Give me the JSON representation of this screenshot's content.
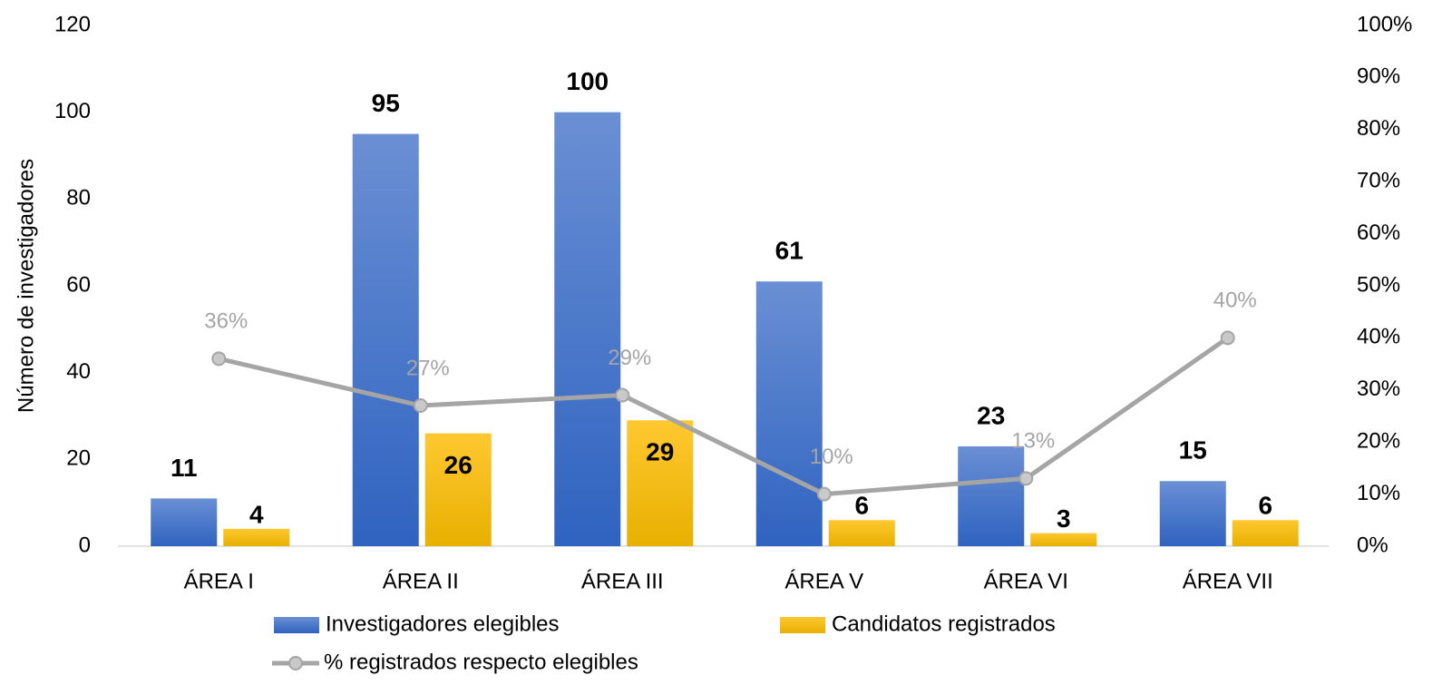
{
  "chart_data": {
    "type": "bar",
    "y_label": "Número de investigadores",
    "categories": [
      "ÁREA I",
      "ÁREA II",
      "ÁREA III",
      "ÁREA V",
      "ÁREA VI",
      "ÁREA VII"
    ],
    "series": [
      {
        "name": "Investigadores elegibles",
        "color": "#4472c4",
        "values": [
          11,
          95,
          100,
          61,
          23,
          15
        ]
      },
      {
        "name": "Candidatos registrados",
        "color": "#ffc000",
        "values": [
          4,
          26,
          29,
          6,
          3,
          6
        ]
      },
      {
        "name": "% registrados respecto elegibles",
        "color": "#a5a5a5",
        "type": "line",
        "axis": "y2",
        "values": [
          36,
          27,
          29,
          10,
          13,
          40
        ],
        "value_labels": [
          "36%",
          "27%",
          "29%",
          "10%",
          "13%",
          "40%"
        ]
      }
    ],
    "ylim": [
      0,
      120
    ],
    "yticks": [
      0,
      20,
      40,
      60,
      80,
      100,
      120
    ],
    "y2lim": [
      0,
      100
    ],
    "y2ticks": [
      {
        "value": 0,
        "label": "0%"
      },
      {
        "value": 10,
        "label": "10%"
      },
      {
        "value": 20,
        "label": "20%"
      },
      {
        "value": 30,
        "label": "30%"
      },
      {
        "value": 40,
        "label": "40%"
      },
      {
        "value": 50,
        "label": "50%"
      },
      {
        "value": 60,
        "label": "60%"
      },
      {
        "value": 70,
        "label": "70%"
      },
      {
        "value": 80,
        "label": "80%"
      },
      {
        "value": 90,
        "label": "90%"
      },
      {
        "value": 100,
        "label": "100%"
      }
    ],
    "grid": false,
    "legend": "bottom"
  }
}
